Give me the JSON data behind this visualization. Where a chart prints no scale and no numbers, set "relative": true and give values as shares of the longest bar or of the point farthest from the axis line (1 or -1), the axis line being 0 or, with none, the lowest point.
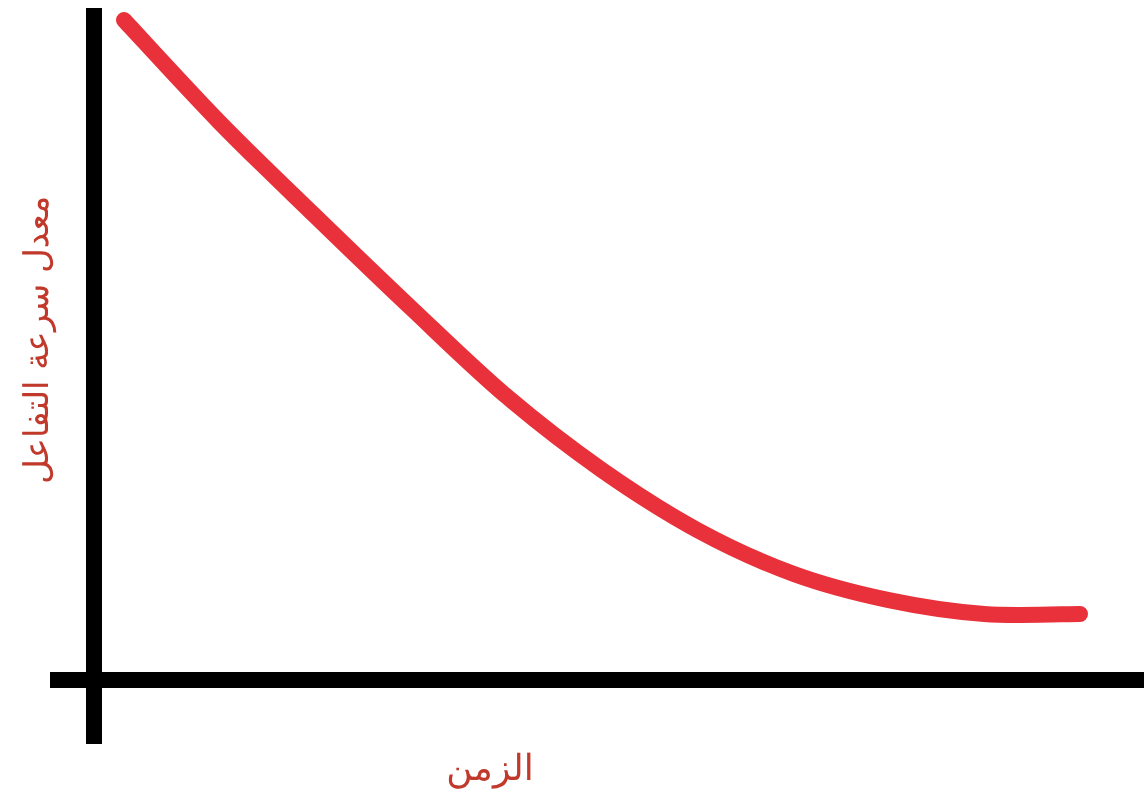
{
  "chart_data": {
    "type": "line",
    "relative": true,
    "xlabel": "الزمن",
    "ylabel": "معدل سرعة التفاعل",
    "categories": [
      null,
      null,
      null,
      null,
      null,
      null,
      null,
      null,
      null,
      null,
      null
    ],
    "series": [
      {
        "color": "#e8313a",
        "values": [
          1,
          0.845,
          0.703,
          0.564,
          0.43,
          0.318,
          0.227,
          0.161,
          0.121,
          0.1,
          0.1
        ]
      }
    ]
  }
}
